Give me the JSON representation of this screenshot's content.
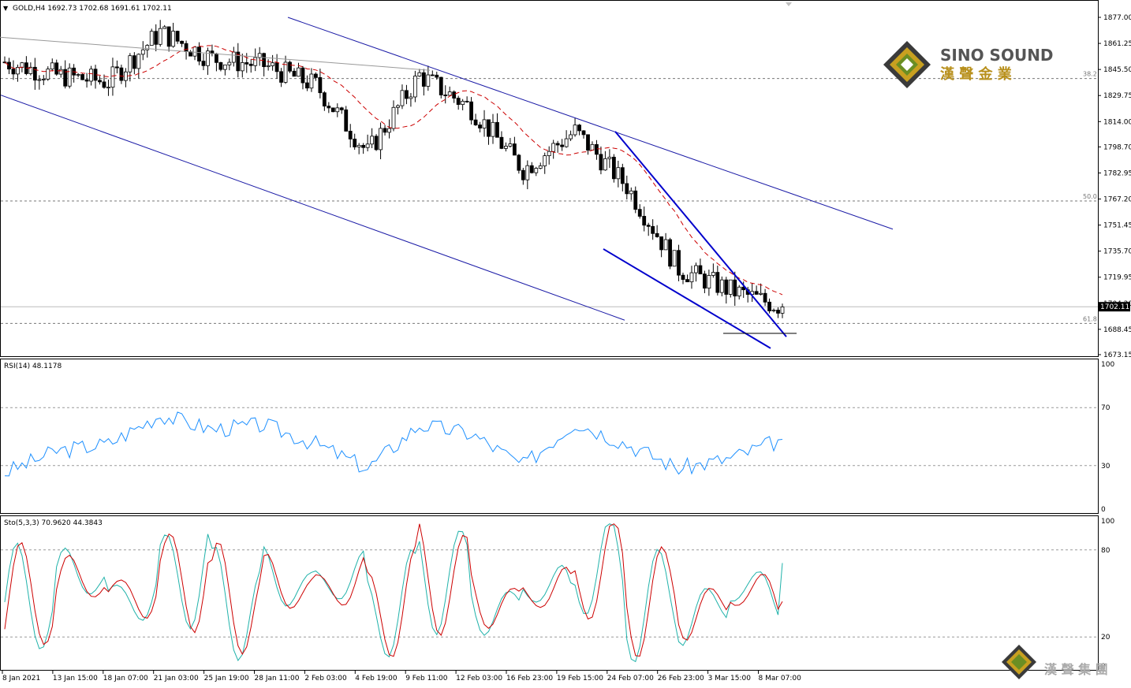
{
  "header": {
    "symbol_info": "GOLD,H4  1692.73 1702.68 1691.61 1702.11"
  },
  "watermark": {
    "brand": "SINO SOUND",
    "brand_cn": "漢 聲 金 業",
    "footer_cn": "漢 聲 集 團"
  },
  "price_panel": {
    "y_ticks": [
      "1877.00",
      "1861.25",
      "1845.50",
      "1829.75",
      "1814.00",
      "1798.70",
      "1782.95",
      "1767.20",
      "1751.45",
      "1735.70",
      "1719.95",
      "1704.20",
      "1688.45",
      "1673.15"
    ],
    "current_price": "1702.11",
    "fib_levels": [
      {
        "label": "38.2",
        "price": 1840
      },
      {
        "label": "50.0",
        "price": 1766
      },
      {
        "label": "61.8",
        "price": 1692
      }
    ]
  },
  "rsi_panel": {
    "title": "RSI(14) 48.1178",
    "y_ticks": [
      "100",
      "70",
      "30",
      "0"
    ]
  },
  "stoch_panel": {
    "title": "Sto(5,3,3) 70.9620 44.3843",
    "y_ticks": [
      "100",
      "80",
      "20",
      "0"
    ]
  },
  "x_axis": {
    "labels": [
      "8 Jan 2021",
      "13 Jan 15:00",
      "18 Jan 07:00",
      "21 Jan 03:00",
      "25 Jan 19:00",
      "28 Jan 11:00",
      "2 Feb 03:00",
      "4 Feb 19:00",
      "9 Feb 11:00",
      "12 Feb 03:00",
      "16 Feb 23:00",
      "19 Feb 15:00",
      "24 Feb 07:00",
      "26 Feb 23:00",
      "3 Mar 15:00",
      "8 Mar 07:00"
    ]
  },
  "colors": {
    "candle": "#000000",
    "channel": "#1a1aa6",
    "wedge": "#0000cc",
    "ma": "#cc0000",
    "rsi": "#1e90ff",
    "stoch_main": "#20b2aa",
    "stoch_signal": "#cc0000"
  },
  "chart_data": {
    "type": "candlestick",
    "symbol": "GOLD",
    "timeframe": "H4",
    "x": [
      "8 Jan 2021",
      "13 Jan 15:00",
      "18 Jan 07:00",
      "21 Jan 03:00",
      "25 Jan 19:00",
      "28 Jan 11:00",
      "2 Feb 03:00",
      "4 Feb 19:00",
      "9 Feb 11:00",
      "12 Feb 03:00",
      "16 Feb 23:00",
      "19 Feb 15:00",
      "24 Feb 07:00",
      "26 Feb 23:00",
      "3 Mar 15:00",
      "8 Mar 07:00"
    ],
    "close_approx": [
      1850,
      1842,
      1838,
      1868,
      1852,
      1848,
      1836,
      1795,
      1842,
      1822,
      1785,
      1808,
      1775,
      1725,
      1712,
      1702
    ],
    "ylim": [
      1673.15,
      1877
    ],
    "fibonacci": {
      "38.2": 1840,
      "50.0": 1766,
      "61.8": 1692
    },
    "rsi": {
      "period": 14,
      "last": 48.1178,
      "levels": [
        70,
        30
      ],
      "values": [
        25,
        40,
        45,
        65,
        55,
        58,
        45,
        28,
        58,
        52,
        30,
        60,
        45,
        28,
        35,
        48
      ]
    },
    "stochastic": {
      "params": "5,3,3",
      "main_last": 70.962,
      "signal_last": 44.3843,
      "levels": [
        80,
        20
      ],
      "main": [
        30,
        85,
        40,
        95,
        20,
        70,
        75,
        15,
        90,
        20,
        60,
        95,
        30,
        15,
        60,
        70
      ],
      "signal": [
        35,
        75,
        50,
        90,
        30,
        60,
        65,
        20,
        85,
        30,
        50,
        90,
        40,
        20,
        50,
        44
      ]
    }
  }
}
